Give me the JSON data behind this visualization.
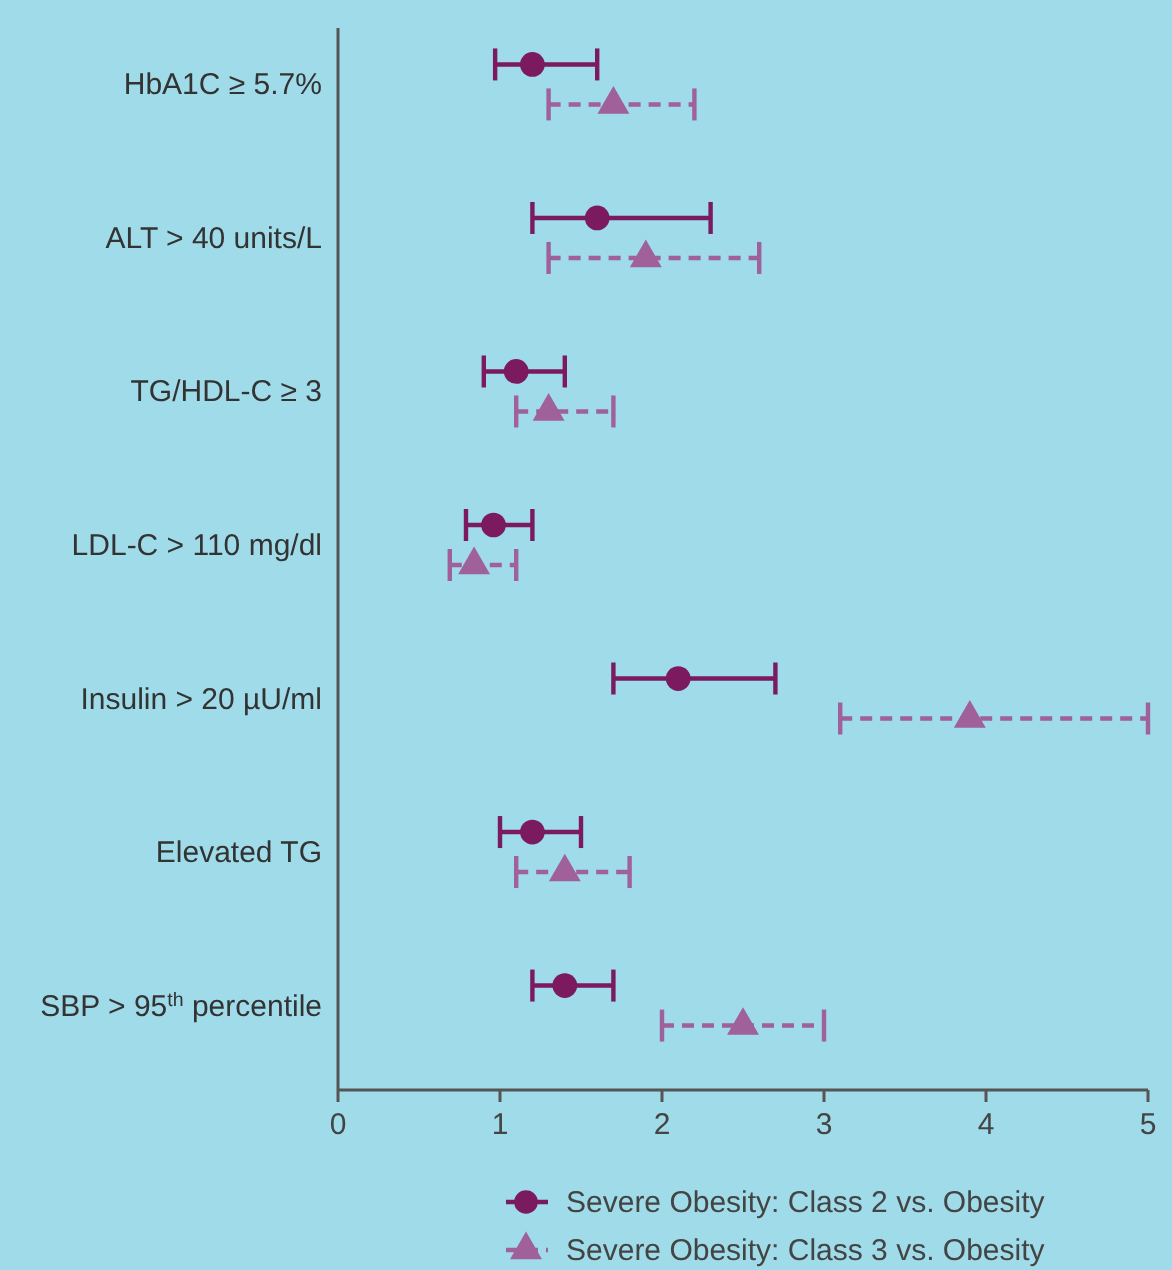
{
  "chart_data": {
    "type": "scatter",
    "orientation": "horizontal",
    "categories": [
      "HbA1C ≥ 5.7%",
      "ALT > 40 units/L",
      "TG/HDL-C ≥ 3",
      "LDL-C > 110 mg/dl",
      "Insulin > 20 µU/ml",
      "Elevated TG",
      "SBP > 95$^{th}$ percentile"
    ],
    "xlim": [
      0,
      5
    ],
    "xticks": [
      0,
      1,
      2,
      3,
      4,
      5
    ],
    "grid": false,
    "legend": "bottom",
    "series": [
      {
        "name": "Severe Obesity: Class 2 vs. Obesity",
        "color": "#7b1a5e",
        "marker": "circle",
        "line_style": "solid",
        "values": [
          1.2,
          1.6,
          1.1,
          0.96,
          2.1,
          1.2,
          1.4
        ],
        "errors": [
          [
            0.97,
            1.6
          ],
          [
            1.2,
            2.3
          ],
          [
            0.9,
            1.4
          ],
          [
            0.79,
            1.2
          ],
          [
            1.7,
            2.7
          ],
          [
            1.0,
            1.5
          ],
          [
            1.2,
            1.7
          ]
        ]
      },
      {
        "name": "Severe Obesity: Class 3 vs. Obesity",
        "color": "#a0609a",
        "marker": "triangle",
        "line_style": "dashed",
        "values": [
          1.7,
          1.9,
          1.3,
          0.84,
          3.9,
          1.4,
          2.5
        ],
        "errors": [
          [
            1.3,
            2.2
          ],
          [
            1.3,
            2.6
          ],
          [
            1.1,
            1.7
          ],
          [
            0.69,
            1.1
          ],
          [
            3.1,
            5.0
          ],
          [
            1.1,
            1.8
          ],
          [
            2.0,
            3.0
          ]
        ]
      }
    ]
  }
}
